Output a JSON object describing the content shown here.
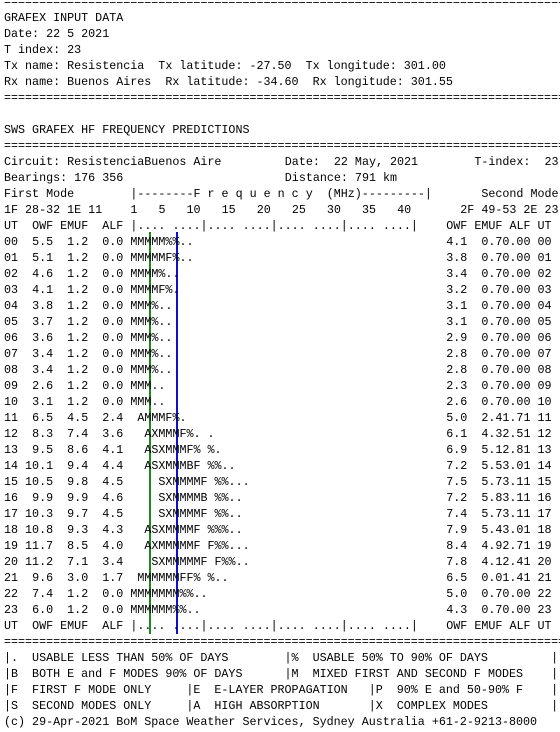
{
  "separator": "================================================================================",
  "input": {
    "title": "GRAFEX INPUT DATA",
    "date": "Date: 22 5 2021",
    "tindex": "T index: 23",
    "tx": "Tx name: Resistencia  Tx latitude: -27.50  Tx longitude: 301.00",
    "rx": "Rx name: Buenos Aires  Rx latitude: -34.60  Rx longitude: 301.55"
  },
  "predictions": {
    "title": "SWS GRAFEX HF FREQUENCY PREDICTIONS",
    "circuit": "Circuit: ResistenciaBuenos Aire",
    "date": "Date:  22 May, 2021",
    "tindex": "T-index:  23",
    "bearings": "Bearings: 176 356",
    "distance": "Distance: 791 km",
    "first_mode": "First Mode",
    "freq_header": "|--------F r e q u e n c y  (MHz)---------|",
    "second_mode": "Second Mode",
    "first_mode_params": "1F 28-32 1E 11",
    "second_mode_params": "2F 49-53 2E 23",
    "scale": [
      "1",
      "5",
      "10",
      "15",
      "20",
      "25",
      "30",
      "35",
      "40"
    ],
    "columns_left": [
      "UT",
      "OWF",
      "EMUF",
      "ALF"
    ],
    "columns_right": [
      "OWF",
      "EMUF",
      "ALF",
      "UT"
    ],
    "axis_pattern": "|.... ....|.... ....|.... ....|.... ....|",
    "rows": [
      [
        "00",
        "5.5",
        "1.2",
        "0.0",
        "MMMMM%%..",
        "4.1",
        "0.7",
        "0.00",
        "00"
      ],
      [
        "01",
        "5.1",
        "1.2",
        "0.0",
        "MMMMMF%..",
        "3.8",
        "0.7",
        "0.00",
        "01"
      ],
      [
        "02",
        "4.6",
        "1.2",
        "0.0",
        "MMMM%..",
        "3.4",
        "0.7",
        "0.00",
        "02"
      ],
      [
        "03",
        "4.1",
        "1.2",
        "0.0",
        "MMMMF%.",
        "3.2",
        "0.7",
        "0.00",
        "03"
      ],
      [
        "04",
        "3.8",
        "1.2",
        "0.0",
        "MMM%..",
        "3.1",
        "0.7",
        "0.00",
        "04"
      ],
      [
        "05",
        "3.7",
        "1.2",
        "0.0",
        "MMM%..",
        "3.1",
        "0.7",
        "0.00",
        "05"
      ],
      [
        "06",
        "3.6",
        "1.2",
        "0.0",
        "MMM%..",
        "2.9",
        "0.7",
        "0.00",
        "06"
      ],
      [
        "07",
        "3.4",
        "1.2",
        "0.0",
        "MMM%..",
        "2.8",
        "0.7",
        "0.00",
        "07"
      ],
      [
        "08",
        "3.4",
        "1.2",
        "0.0",
        "MMM%..",
        "2.8",
        "0.7",
        "0.00",
        "08"
      ],
      [
        "09",
        "2.6",
        "1.2",
        "0.0",
        "MMM..",
        "2.3",
        "0.7",
        "0.00",
        "09"
      ],
      [
        "10",
        "3.1",
        "1.2",
        "0.0",
        "MMM..",
        "2.6",
        "0.7",
        "0.00",
        "10"
      ],
      [
        "11",
        "6.5",
        "4.5",
        "2.4",
        " AMMMF%.",
        "5.0",
        "2.4",
        "1.71",
        "11"
      ],
      [
        "12",
        "8.3",
        "7.4",
        "3.6",
        "  AXMMMF%. .",
        "6.1",
        "4.3",
        "2.51",
        "12"
      ],
      [
        "13",
        "9.5",
        "8.6",
        "4.1",
        "  ASXMMMF% %.",
        "6.9",
        "5.1",
        "2.81",
        "13"
      ],
      [
        "14",
        "10.1",
        "9.4",
        "4.4",
        "  ASXMMMBF %%..",
        "7.2",
        "5.5",
        "3.01",
        "14"
      ],
      [
        "15",
        "10.5",
        "9.8",
        "4.5",
        "    SXMMMMF %%...",
        "7.5",
        "5.7",
        "3.11",
        "15"
      ],
      [
        "16",
        "9.9",
        "9.9",
        "4.6",
        "    SXMMMMB %%..",
        "7.2",
        "5.8",
        "3.11",
        "16"
      ],
      [
        "17",
        "10.3",
        "9.7",
        "4.5",
        "    SXMMMMF %%..",
        "7.4",
        "5.7",
        "3.11",
        "17"
      ],
      [
        "18",
        "10.8",
        "9.3",
        "4.3",
        "  ASXMMMMF %%%..",
        "7.9",
        "5.4",
        "3.01",
        "18"
      ],
      [
        "19",
        "11.7",
        "8.5",
        "4.0",
        "  AXMMMMMF F%%...",
        "8.4",
        "4.9",
        "2.71",
        "19"
      ],
      [
        "20",
        "11.2",
        "7.1",
        "3.4",
        "   SXMMMMMF F%%..",
        "7.8",
        "4.1",
        "2.41",
        "20"
      ],
      [
        "21",
        "9.6",
        "3.0",
        "1.7",
        " MMMMMMFF% %..",
        "6.5",
        "0.0",
        "1.41",
        "21"
      ],
      [
        "22",
        "7.4",
        "1.2",
        "0.0",
        "MMMMMMM%%..",
        "5.0",
        "0.7",
        "0.00",
        "22"
      ],
      [
        "23",
        "6.0",
        "1.2",
        "0.0",
        "MMMMMM%%..",
        "4.3",
        "0.7",
        "0.00",
        "23"
      ]
    ]
  },
  "legend": [
    "|.  USABLE LESS THAN 50% OF DAYS        |%  USABLE 50% TO 90% OF DAYS         |",
    "|B  BOTH E and F MODES 90% OF DAYS      |M  MIXED FIRST AND SECOND F MODES    |",
    "|F  FIRST F MODE ONLY     |E  E-LAYER PROPAGATION   |P  90% E and 50-90% F    |",
    "|S  SECOND MODES ONLY     |A  HIGH ABSORPTION       |X  COMPLEX MODES         |"
  ],
  "footer": "(c) 29-Apr-2021 BoM Space Weather Services, Sydney Australia +61-2-9213-8000"
}
